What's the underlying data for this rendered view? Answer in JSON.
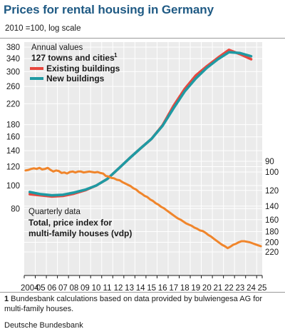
{
  "header": {
    "title": "Prices for rental housing in Germany",
    "subtitle": "2010 =100, log scale"
  },
  "footnote": {
    "marker": "1",
    "text": " Bundesbank calculations based on data provided by bulwiengesa AG for multi-family houses."
  },
  "source": "Deutsche Bundesbank",
  "colors": {
    "existing": "#e8473e",
    "new": "#1f9aa3",
    "vdp": "#f0852b",
    "plot_bg": "#ebebeb",
    "grid": "#ffffff",
    "title": "#1f5a84"
  },
  "chart_data": [
    {
      "type": "line",
      "scale": "log",
      "axis_side": "left",
      "ylim": [
        85,
        390
      ],
      "yticks": [
        80,
        100,
        120,
        140,
        160,
        180,
        220,
        260,
        300,
        340,
        380
      ],
      "ytick_labels": [
        "80",
        "100",
        "120",
        "140",
        "160",
        "180",
        "220",
        "260",
        "300",
        "340",
        "380"
      ],
      "annotation_lines": [
        "Annual values",
        "127 towns and cities"
      ],
      "annotation_superscript": "1",
      "x": [
        2004,
        2005,
        2006,
        2007,
        2008,
        2009,
        2010,
        2011,
        2012,
        2013,
        2014,
        2015,
        2016,
        2017,
        2018,
        2019,
        2020,
        2021,
        2022,
        2023,
        2024
      ],
      "series": [
        {
          "name": "Existing buildings",
          "values": [
            92,
            91,
            90,
            90.5,
            92.5,
            95.5,
            100,
            106.5,
            117.5,
            130,
            143,
            157,
            179,
            216,
            254,
            289,
            316,
            343,
            370,
            355,
            338
          ]
        },
        {
          "name": "New buildings",
          "values": [
            94,
            92,
            91,
            91.5,
            93.5,
            96,
            100,
            106.5,
            117.5,
            130,
            143,
            157,
            178,
            211,
            248,
            281,
            311,
            338,
            362,
            359,
            348
          ]
        }
      ]
    },
    {
      "type": "line",
      "scale": "log",
      "axis_side": "right",
      "ylim": [
        88,
        240
      ],
      "yticks": [
        90,
        100,
        120,
        140,
        160,
        180,
        200,
        220
      ],
      "ytick_labels": [
        "90",
        "100",
        "120",
        "140",
        "160",
        "180",
        "200",
        "220"
      ],
      "annotation_lines": [
        "Quarterly data",
        "Total, price index for",
        "multi-family houses (vdp)"
      ],
      "series": [
        {
          "name": "Total, price index for multi-family houses (vdp)",
          "x": [
            2004.0,
            2004.25,
            2004.5,
            2004.75,
            2005.0,
            2005.25,
            2005.5,
            2005.75,
            2006.0,
            2006.25,
            2006.5,
            2006.75,
            2007.0,
            2007.25,
            2007.5,
            2007.75,
            2008.0,
            2008.25,
            2008.5,
            2008.75,
            2009.0,
            2009.25,
            2009.5,
            2009.75,
            2010.0,
            2010.25,
            2010.5,
            2010.75,
            2011.0,
            2011.25,
            2011.5,
            2011.75,
            2012.0,
            2012.25,
            2012.5,
            2012.75,
            2013.0,
            2013.25,
            2013.5,
            2013.75,
            2014.0,
            2014.25,
            2014.5,
            2014.75,
            2015.0,
            2015.25,
            2015.5,
            2015.75,
            2016.0,
            2016.25,
            2016.5,
            2016.75,
            2017.0,
            2017.25,
            2017.5,
            2017.75,
            2018.0,
            2018.25,
            2018.5,
            2018.75,
            2019.0,
            2019.25,
            2019.5,
            2019.75,
            2020.0,
            2020.25,
            2020.5,
            2020.75,
            2021.0,
            2021.25,
            2021.5,
            2021.75,
            2022.0,
            2022.25,
            2022.5,
            2022.75,
            2023.0,
            2023.25,
            2023.5,
            2023.75,
            2024.0,
            2024.25,
            2024.5,
            2024.75,
            2025.0,
            2025.25
          ],
          "values": [
            98.5,
            98,
            97,
            96.5,
            97,
            96,
            97.5,
            97,
            96,
            98,
            99.5,
            98.5,
            99,
            101,
            100.5,
            101.5,
            100,
            99.5,
            100.5,
            99.5,
            99.5,
            100.5,
            100,
            99.5,
            100,
            100.5,
            100,
            101,
            101.5,
            104,
            104.5,
            106,
            106.5,
            108,
            108.5,
            110.5,
            112,
            113.5,
            115,
            117.5,
            119,
            122,
            124,
            126.5,
            128,
            131,
            133,
            136,
            138,
            141,
            143,
            146,
            149,
            152,
            155,
            158,
            160,
            163,
            166,
            168,
            170,
            173,
            175,
            178,
            179,
            182,
            186,
            189,
            193,
            197,
            201,
            205,
            208,
            212,
            209,
            205,
            203,
            200,
            198,
            198,
            199,
            200,
            202,
            204,
            206,
            208
          ]
        }
      ]
    }
  ],
  "x_axis": {
    "min": 2004,
    "max": 2025.5,
    "tick_labels": [
      "2004",
      "05",
      "06",
      "07",
      "08",
      "09",
      "10",
      "11",
      "12",
      "13",
      "14",
      "15",
      "16",
      "17",
      "18",
      "19",
      "20",
      "21",
      "22",
      "23",
      "24",
      "25"
    ]
  }
}
